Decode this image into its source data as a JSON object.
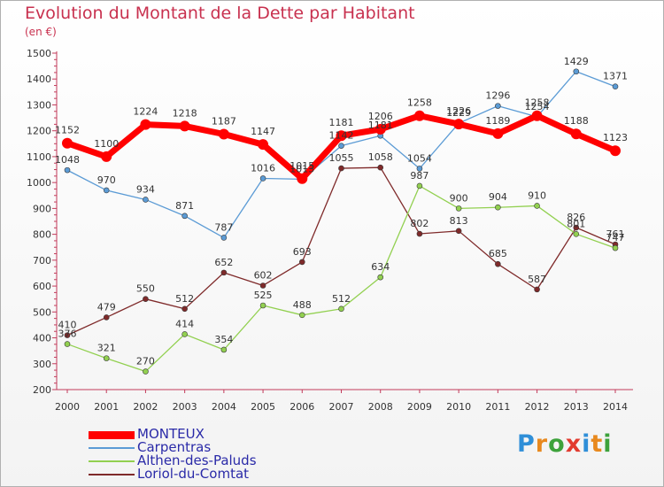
{
  "title": "Evolution du Montant de la Dette par Habitant",
  "unit_label": "(en €)",
  "logo": {
    "text": "Proxiti",
    "letters": [
      {
        "ch": "P",
        "color": "#2f8fd8"
      },
      {
        "ch": "r",
        "color": "#e8891e"
      },
      {
        "ch": "o",
        "color": "#3da23b"
      },
      {
        "ch": "x",
        "color": "#e23a2e"
      },
      {
        "ch": "i",
        "color": "#2f8fd8"
      },
      {
        "ch": "t",
        "color": "#e8891e"
      },
      {
        "ch": "i",
        "color": "#3da23b"
      }
    ]
  },
  "chart_data": {
    "type": "line",
    "title": "Evolution du Montant de la Dette par Habitant",
    "ylabel": "(en €)",
    "xlabel": "",
    "x": [
      "2000",
      "2001",
      "2002",
      "2003",
      "2004",
      "2005",
      "2006",
      "2007",
      "2008",
      "2009",
      "2010",
      "2011",
      "2012",
      "2013",
      "2014"
    ],
    "ylim": [
      200,
      1500
    ],
    "yticks": [
      200,
      300,
      400,
      500,
      600,
      700,
      800,
      900,
      1000,
      1100,
      1200,
      1300,
      1400,
      1500
    ],
    "grid": false,
    "legend_position": "bottom-left",
    "series": [
      {
        "name": "MONTEUX",
        "color": "#ff0000",
        "values": [
          1152,
          1100,
          1224,
          1218,
          1187,
          1147,
          1015,
          1181,
          1206,
          1258,
          1226,
          1189,
          1258,
          1188,
          1123
        ]
      },
      {
        "name": "Carpentras",
        "color": "#5b9bd5",
        "values": [
          1048,
          970,
          934,
          871,
          787,
          1016,
          1013,
          1142,
          1181,
          1054,
          1229,
          1296,
          1254,
          1429,
          1371
        ]
      },
      {
        "name": "Althen-des-Paluds",
        "color": "#92d050",
        "values": [
          376,
          321,
          270,
          414,
          354,
          525,
          488,
          512,
          634,
          987,
          900,
          904,
          910,
          801,
          747
        ]
      },
      {
        "name": "Loriol-du-Comtat",
        "color": "#7f2a2a",
        "values": [
          410,
          479,
          550,
          512,
          652,
          602,
          693,
          1055,
          1058,
          802,
          813,
          685,
          587,
          826,
          761
        ]
      }
    ]
  }
}
